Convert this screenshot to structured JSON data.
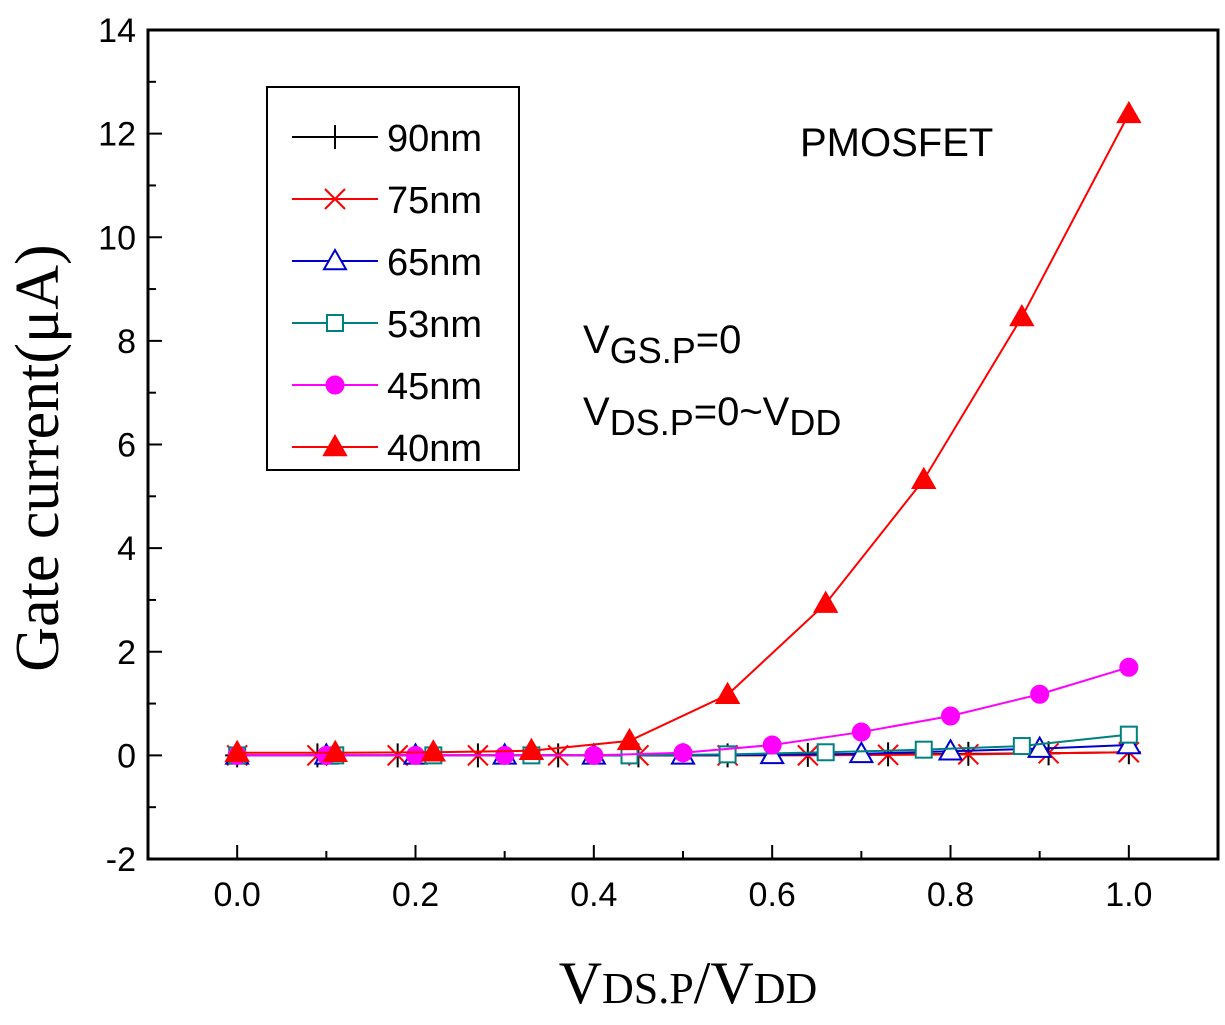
{
  "chart_data": {
    "type": "line",
    "title": "",
    "xlabel": {
      "main": "V",
      "sub1": "DS.P",
      "slash": "/V",
      "sub2": "DD"
    },
    "ylabel": "Gate current(μA)",
    "xlim": [
      -0.1,
      1.1
    ],
    "ylim": [
      -2,
      14
    ],
    "xticks": [
      0.0,
      0.2,
      0.4,
      0.6,
      0.8,
      1.0
    ],
    "xtick_labels": [
      "0.0",
      "0.2",
      "0.4",
      "0.6",
      "0.8",
      "1.0"
    ],
    "yticks": [
      -2,
      0,
      2,
      4,
      6,
      8,
      10,
      12,
      14
    ],
    "ytick_labels": [
      "-2",
      "0",
      "2",
      "4",
      "6",
      "8",
      "10",
      "12",
      "14"
    ],
    "legend_position": "top-left",
    "series": [
      {
        "name": "90nm",
        "color": "#000000",
        "marker": "plus",
        "x": [
          0.0,
          0.09,
          0.18,
          0.27,
          0.36,
          0.45,
          0.55,
          0.64,
          0.73,
          0.82,
          0.91,
          1.0
        ],
        "y": [
          0,
          0,
          0,
          0,
          0,
          0,
          0,
          0.01,
          0.02,
          0.03,
          0.04,
          0.06
        ]
      },
      {
        "name": "75nm",
        "color": "#ff0000",
        "marker": "x",
        "x": [
          0.0,
          0.09,
          0.18,
          0.27,
          0.36,
          0.45,
          0.55,
          0.64,
          0.73,
          0.82,
          0.91,
          1.0
        ],
        "y": [
          0,
          0,
          0,
          0,
          0,
          0,
          0,
          0,
          0.01,
          0.02,
          0.04,
          0.06
        ]
      },
      {
        "name": "65nm",
        "color": "#0000cc",
        "marker": "triangle-open",
        "x": [
          0.0,
          0.1,
          0.2,
          0.3,
          0.4,
          0.5,
          0.6,
          0.7,
          0.8,
          0.9,
          1.0
        ],
        "y": [
          0,
          0,
          0,
          0,
          0,
          0,
          0.01,
          0.03,
          0.08,
          0.13,
          0.2
        ]
      },
      {
        "name": "53nm",
        "color": "#008080",
        "marker": "square-open",
        "x": [
          0.0,
          0.11,
          0.22,
          0.33,
          0.44,
          0.55,
          0.66,
          0.77,
          0.88,
          1.0
        ],
        "y": [
          0,
          0,
          0,
          0,
          0,
          0.02,
          0.06,
          0.11,
          0.18,
          0.4
        ]
      },
      {
        "name": "45nm",
        "color": "#ff00ff",
        "marker": "circle-filled",
        "x": [
          0.0,
          0.1,
          0.2,
          0.3,
          0.4,
          0.5,
          0.6,
          0.7,
          0.8,
          0.9,
          1.0
        ],
        "y": [
          0,
          0,
          0,
          0,
          0,
          0.05,
          0.2,
          0.45,
          0.76,
          1.18,
          1.7
        ]
      },
      {
        "name": "40nm",
        "color": "#ff0000",
        "marker": "triangle-filled",
        "x": [
          0.0,
          0.11,
          0.22,
          0.33,
          0.44,
          0.55,
          0.66,
          0.77,
          0.88,
          1.0
        ],
        "y": [
          0.05,
          0.05,
          0.06,
          0.09,
          0.28,
          1.17,
          2.93,
          5.32,
          8.46,
          12.38
        ]
      }
    ],
    "annotations": {
      "device": "PMOSFET",
      "vgs": {
        "main": "V",
        "sub": "GS.P",
        "rest": "=0"
      },
      "vds": {
        "main": "V",
        "sub": "DS.P",
        "mid": "=0~V",
        "sub2": "DD"
      }
    }
  }
}
